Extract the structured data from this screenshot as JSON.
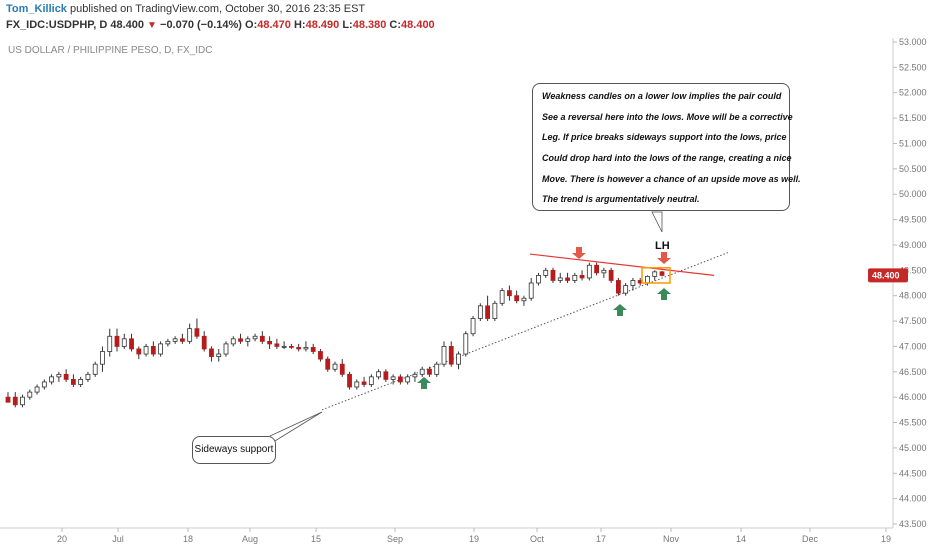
{
  "header": {
    "author": "Tom_Killick",
    "published_text": " published on TradingView.com, October 30, 2016 23:35 EST",
    "symbol": "FX_IDC:USDPHP, D",
    "last": "48.400",
    "change_arrow": "▼",
    "change": "−0.070 (−0.14%)",
    "o_label": "O:",
    "open": "48.470",
    "h_label": "H:",
    "high": "48.490",
    "l_label": "L:",
    "low": "48.380",
    "c_label": "C:",
    "close": "48.400"
  },
  "colors": {
    "up": "#ffffff",
    "down": "#b71c1c",
    "wick": "#333333",
    "support_line": "#555555",
    "resistance_line": "#e53935",
    "arrow_red": "#e05a47",
    "arrow_green": "#3a8a5c",
    "price_badge": "#c62828",
    "box": "#ff9800"
  },
  "annotations": {
    "main_note": [
      "Weakness candles on a lower low implies the pair could",
      "See a reversal here into the lows. Move will be a corrective",
      "Leg. If price breaks sideways support into the lows, price",
      "Could drop hard into the lows of the range, creating a nice",
      "Move. There is however a chance of an upside move as well.",
      "The trend is argumentatively neutral."
    ],
    "support_note": "Sideways support",
    "lh_label": "LH"
  },
  "chart_data": {
    "type": "candlestick",
    "title": "US DOLLAR / PHILIPPINE PESO, D, FX_IDC",
    "current_price": "48.400",
    "ylim": [
      43.5,
      53.0
    ],
    "y_ticks": [
      "53.000",
      "52.500",
      "52.000",
      "51.500",
      "51.000",
      "50.500",
      "50.000",
      "49.500",
      "49.000",
      "48.500",
      "48.000",
      "47.500",
      "47.000",
      "46.500",
      "46.000",
      "45.500",
      "45.000",
      "44.500",
      "44.000",
      "43.500"
    ],
    "x_ticks": [
      "20",
      "Jul",
      "18",
      "Aug",
      "15",
      "Sep",
      "19",
      "Oct",
      "17",
      "Nov",
      "14",
      "Dec",
      "19"
    ],
    "candles": [
      {
        "o": 46.0,
        "h": 46.1,
        "l": 45.9,
        "c": 45.9
      },
      {
        "o": 46.0,
        "h": 46.1,
        "l": 45.8,
        "c": 45.85
      },
      {
        "o": 45.85,
        "h": 46.05,
        "l": 45.8,
        "c": 46.0
      },
      {
        "o": 46.0,
        "h": 46.15,
        "l": 45.95,
        "c": 46.1
      },
      {
        "o": 46.1,
        "h": 46.25,
        "l": 46.05,
        "c": 46.2
      },
      {
        "o": 46.2,
        "h": 46.35,
        "l": 46.15,
        "c": 46.3
      },
      {
        "o": 46.3,
        "h": 46.45,
        "l": 46.25,
        "c": 46.4
      },
      {
        "o": 46.4,
        "h": 46.5,
        "l": 46.3,
        "c": 46.45
      },
      {
        "o": 46.45,
        "h": 46.55,
        "l": 46.3,
        "c": 46.35
      },
      {
        "o": 46.35,
        "h": 46.45,
        "l": 46.2,
        "c": 46.25
      },
      {
        "o": 46.25,
        "h": 46.4,
        "l": 46.2,
        "c": 46.35
      },
      {
        "o": 46.35,
        "h": 46.5,
        "l": 46.3,
        "c": 46.45
      },
      {
        "o": 46.45,
        "h": 46.7,
        "l": 46.4,
        "c": 46.65
      },
      {
        "o": 46.65,
        "h": 47.0,
        "l": 46.5,
        "c": 46.9
      },
      {
        "o": 46.9,
        "h": 47.35,
        "l": 46.8,
        "c": 47.2
      },
      {
        "o": 47.2,
        "h": 47.35,
        "l": 46.9,
        "c": 47.0
      },
      {
        "o": 47.0,
        "h": 47.25,
        "l": 46.95,
        "c": 47.15
      },
      {
        "o": 47.15,
        "h": 47.25,
        "l": 46.9,
        "c": 46.95
      },
      {
        "o": 46.95,
        "h": 47.0,
        "l": 46.75,
        "c": 46.85
      },
      {
        "o": 46.85,
        "h": 47.05,
        "l": 46.8,
        "c": 47.0
      },
      {
        "o": 47.0,
        "h": 47.1,
        "l": 46.8,
        "c": 46.85
      },
      {
        "o": 46.85,
        "h": 47.1,
        "l": 46.8,
        "c": 47.05
      },
      {
        "o": 47.05,
        "h": 47.15,
        "l": 47.0,
        "c": 47.1
      },
      {
        "o": 47.1,
        "h": 47.2,
        "l": 47.05,
        "c": 47.15
      },
      {
        "o": 47.15,
        "h": 47.25,
        "l": 47.05,
        "c": 47.1
      },
      {
        "o": 47.1,
        "h": 47.45,
        "l": 47.05,
        "c": 47.35
      },
      {
        "o": 47.35,
        "h": 47.55,
        "l": 47.15,
        "c": 47.2
      },
      {
        "o": 47.2,
        "h": 47.3,
        "l": 46.9,
        "c": 46.95
      },
      {
        "o": 46.95,
        "h": 47.0,
        "l": 46.7,
        "c": 46.8
      },
      {
        "o": 46.8,
        "h": 46.95,
        "l": 46.7,
        "c": 46.85
      },
      {
        "o": 46.85,
        "h": 47.1,
        "l": 46.8,
        "c": 47.05
      },
      {
        "o": 47.05,
        "h": 47.2,
        "l": 47.0,
        "c": 47.15
      },
      {
        "o": 47.15,
        "h": 47.25,
        "l": 47.05,
        "c": 47.1
      },
      {
        "o": 47.1,
        "h": 47.2,
        "l": 47.0,
        "c": 47.15
      },
      {
        "o": 47.15,
        "h": 47.25,
        "l": 47.1,
        "c": 47.2
      },
      {
        "o": 47.2,
        "h": 47.3,
        "l": 47.05,
        "c": 47.1
      },
      {
        "o": 47.1,
        "h": 47.2,
        "l": 46.95,
        "c": 47.05
      },
      {
        "o": 47.05,
        "h": 47.15,
        "l": 46.95,
        "c": 47.0
      },
      {
        "o": 47.0,
        "h": 47.1,
        "l": 46.95,
        "c": 47.0
      },
      {
        "o": 47.0,
        "h": 47.05,
        "l": 46.95,
        "c": 46.98
      },
      {
        "o": 46.98,
        "h": 47.05,
        "l": 46.9,
        "c": 46.95
      },
      {
        "o": 46.95,
        "h": 47.1,
        "l": 46.9,
        "c": 46.98
      },
      {
        "o": 46.98,
        "h": 47.05,
        "l": 46.85,
        "c": 46.9
      },
      {
        "o": 46.9,
        "h": 46.95,
        "l": 46.7,
        "c": 46.75
      },
      {
        "o": 46.75,
        "h": 46.8,
        "l": 46.5,
        "c": 46.55
      },
      {
        "o": 46.55,
        "h": 46.7,
        "l": 46.5,
        "c": 46.65
      },
      {
        "o": 46.65,
        "h": 46.75,
        "l": 46.4,
        "c": 46.45
      },
      {
        "o": 46.45,
        "h": 46.5,
        "l": 46.15,
        "c": 46.2
      },
      {
        "o": 46.2,
        "h": 46.35,
        "l": 46.15,
        "c": 46.3
      },
      {
        "o": 46.3,
        "h": 46.4,
        "l": 46.2,
        "c": 46.25
      },
      {
        "o": 46.25,
        "h": 46.45,
        "l": 46.2,
        "c": 46.4
      },
      {
        "o": 46.4,
        "h": 46.55,
        "l": 46.35,
        "c": 46.5
      },
      {
        "o": 46.5,
        "h": 46.55,
        "l": 46.3,
        "c": 46.35
      },
      {
        "o": 46.35,
        "h": 46.45,
        "l": 46.25,
        "c": 46.4
      },
      {
        "o": 46.4,
        "h": 46.45,
        "l": 46.25,
        "c": 46.3
      },
      {
        "o": 46.3,
        "h": 46.45,
        "l": 46.25,
        "c": 46.4
      },
      {
        "o": 46.4,
        "h": 46.5,
        "l": 46.3,
        "c": 46.45
      },
      {
        "o": 46.45,
        "h": 46.6,
        "l": 46.4,
        "c": 46.55
      },
      {
        "o": 46.55,
        "h": 46.6,
        "l": 46.4,
        "c": 46.45
      },
      {
        "o": 46.45,
        "h": 46.7,
        "l": 46.4,
        "c": 46.65
      },
      {
        "o": 46.65,
        "h": 47.1,
        "l": 46.6,
        "c": 47.0
      },
      {
        "o": 47.0,
        "h": 47.1,
        "l": 46.6,
        "c": 46.65
      },
      {
        "o": 46.65,
        "h": 46.9,
        "l": 46.55,
        "c": 46.85
      },
      {
        "o": 46.85,
        "h": 47.3,
        "l": 46.8,
        "c": 47.25
      },
      {
        "o": 47.25,
        "h": 47.6,
        "l": 47.2,
        "c": 47.55
      },
      {
        "o": 47.55,
        "h": 47.85,
        "l": 47.5,
        "c": 47.8
      },
      {
        "o": 47.8,
        "h": 48.0,
        "l": 47.5,
        "c": 47.55
      },
      {
        "o": 47.55,
        "h": 47.9,
        "l": 47.5,
        "c": 47.85
      },
      {
        "o": 47.85,
        "h": 48.15,
        "l": 47.8,
        "c": 48.1
      },
      {
        "o": 48.1,
        "h": 48.2,
        "l": 47.9,
        "c": 48.0
      },
      {
        "o": 48.0,
        "h": 48.1,
        "l": 47.85,
        "c": 47.9
      },
      {
        "o": 47.9,
        "h": 48.0,
        "l": 47.8,
        "c": 47.95
      },
      {
        "o": 47.95,
        "h": 48.35,
        "l": 47.9,
        "c": 48.25
      },
      {
        "o": 48.25,
        "h": 48.45,
        "l": 48.2,
        "c": 48.4
      },
      {
        "o": 48.4,
        "h": 48.55,
        "l": 48.35,
        "c": 48.5
      },
      {
        "o": 48.5,
        "h": 48.55,
        "l": 48.25,
        "c": 48.3
      },
      {
        "o": 48.3,
        "h": 48.45,
        "l": 48.25,
        "c": 48.35
      },
      {
        "o": 48.35,
        "h": 48.45,
        "l": 48.25,
        "c": 48.3
      },
      {
        "o": 48.3,
        "h": 48.45,
        "l": 48.25,
        "c": 48.4
      },
      {
        "o": 48.4,
        "h": 48.5,
        "l": 48.3,
        "c": 48.35
      },
      {
        "o": 48.35,
        "h": 48.65,
        "l": 48.3,
        "c": 48.6
      },
      {
        "o": 48.6,
        "h": 48.65,
        "l": 48.4,
        "c": 48.45
      },
      {
        "o": 48.45,
        "h": 48.55,
        "l": 48.35,
        "c": 48.5
      },
      {
        "o": 48.5,
        "h": 48.55,
        "l": 48.25,
        "c": 48.3
      },
      {
        "o": 48.3,
        "h": 48.35,
        "l": 48.0,
        "c": 48.05
      },
      {
        "o": 48.05,
        "h": 48.25,
        "l": 48.0,
        "c": 48.2
      },
      {
        "o": 48.2,
        "h": 48.35,
        "l": 48.1,
        "c": 48.3
      },
      {
        "o": 48.3,
        "h": 48.35,
        "l": 48.2,
        "c": 48.25
      },
      {
        "o": 48.25,
        "h": 48.4,
        "l": 48.2,
        "c": 48.38
      },
      {
        "o": 48.38,
        "h": 48.5,
        "l": 48.3,
        "c": 48.47
      },
      {
        "o": 48.47,
        "h": 48.49,
        "l": 48.38,
        "c": 48.4
      }
    ],
    "support_line": {
      "from": [
        46.2,
        "Sep 2"
      ],
      "to": [
        48.45,
        "Oct 31"
      ]
    },
    "resistance_line": {
      "from": [
        48.8,
        "Oct 3"
      ],
      "to": [
        48.45,
        "Nov 10"
      ]
    }
  }
}
